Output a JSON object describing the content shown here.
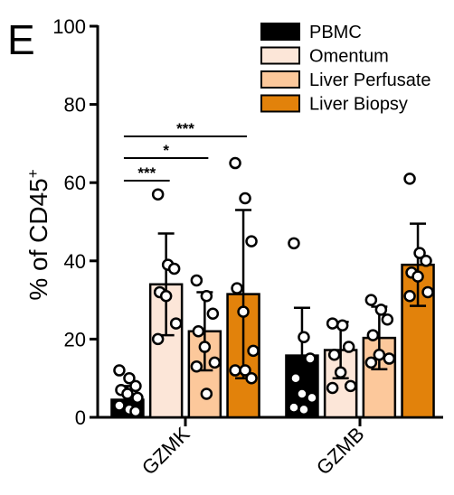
{
  "panel_letter": "E",
  "chart_data": {
    "type": "bar",
    "ylabel": "% of CD45",
    "ylabel_superscript": "+",
    "ylim": [
      0,
      100
    ],
    "yticks": [
      0,
      20,
      40,
      60,
      80,
      100
    ],
    "categories": [
      "GZMK",
      "GZMB"
    ],
    "legend_position": "top-right",
    "series": [
      {
        "name": "PBMC",
        "color": "#000000",
        "values": [
          4.5,
          15.8
        ],
        "sd": [
          3.5,
          12.2
        ],
        "points": [
          [
            12,
            10,
            8,
            7,
            6,
            5,
            3,
            2,
            1.5
          ],
          [
            44.5,
            20.5,
            15,
            10,
            6,
            5,
            2.5,
            2
          ]
        ]
      },
      {
        "name": "Omentum",
        "color": "#fce6d8",
        "values": [
          34,
          17.2
        ],
        "sd": [
          13,
          7.2
        ],
        "points": [
          [
            57,
            39,
            38,
            32,
            31,
            24,
            20
          ],
          [
            24,
            23.5,
            18,
            16,
            11.5,
            8,
            7.5
          ]
        ]
      },
      {
        "name": "Liver Perfusate",
        "color": "#fcc89b",
        "values": [
          22,
          20.3
        ],
        "sd": [
          10,
          8
        ],
        "points": [
          [
            35,
            31,
            26.5,
            22,
            18,
            14,
            13,
            6
          ],
          [
            30,
            27.5,
            25,
            21,
            16,
            15,
            14
          ]
        ]
      },
      {
        "name": "Liver Biopsy",
        "color": "#e2820b",
        "values": [
          31.5,
          39
        ],
        "sd": [
          21.5,
          10.5
        ],
        "points": [
          [
            65,
            56,
            45,
            33,
            27,
            17,
            12,
            12,
            10
          ],
          [
            61,
            42,
            40,
            37,
            36,
            32,
            31
          ]
        ]
      }
    ],
    "significance": [
      {
        "category": "GZMK",
        "from": "PBMC",
        "to": "Omentum",
        "label": "***"
      },
      {
        "category": "GZMK",
        "from": "PBMC",
        "to": "Liver Perfusate",
        "label": "*"
      },
      {
        "category": "GZMK",
        "from": "PBMC",
        "to": "Liver Biopsy",
        "label": "***"
      }
    ]
  }
}
